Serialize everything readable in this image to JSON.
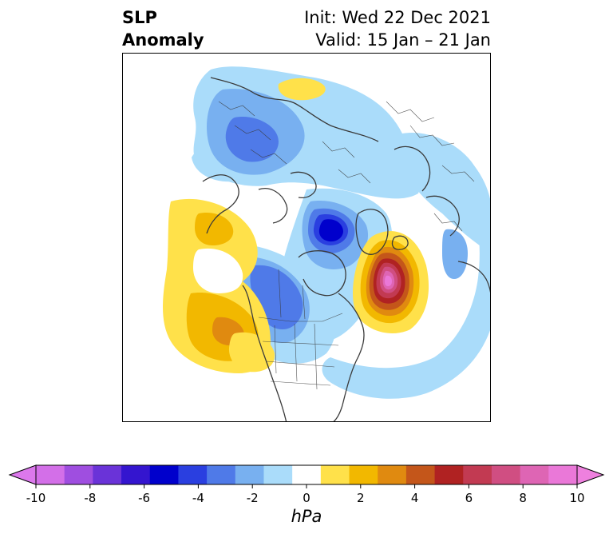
{
  "header": {
    "title_line1": "SLP",
    "title_line2": "Anomaly",
    "init_text": "Init: Wed 22 Dec 2021",
    "valid_text": "Valid: 15 Jan – 21 Jan"
  },
  "colorbar": {
    "unit": "hPa",
    "tick_labels": [
      "-10",
      "-8",
      "-6",
      "-4",
      "-2",
      "0",
      "2",
      "4",
      "6",
      "8",
      "10"
    ],
    "levels": [
      -10,
      -9,
      -8,
      -7,
      -6,
      -5,
      -4,
      -3,
      -2,
      -1,
      1,
      2,
      3,
      4,
      5,
      6,
      7,
      8,
      9,
      10
    ],
    "colors": [
      "#d36fe8",
      "#9f4ee0",
      "#6a33d8",
      "#3415cf",
      "#0000cc",
      "#2a3fe0",
      "#4f7ae8",
      "#78b0f0",
      "#aadcfa",
      "#ffffff",
      "#ffe14a",
      "#f2b800",
      "#e08a10",
      "#c4561a",
      "#b02222",
      "#c23a52",
      "#d04e82",
      "#de65b4",
      "#ea78d8"
    ],
    "min_extend_color": "#dc78ec",
    "max_extend_color": "#ee80de"
  },
  "map": {
    "description_region": "Northern Hemisphere polar stereographic",
    "palette": {
      "light_blue": "#aadcfa",
      "sky_blue": "#78b0f0",
      "mid_blue": "#4f7ae8",
      "royal_blue": "#2a3fe0",
      "deep_blue": "#0000cc",
      "yellow": "#ffe14a",
      "gold": "#f2b800",
      "orange": "#e08a10",
      "rust": "#c4561a",
      "crimson": "#b02222",
      "rose": "#c23a52",
      "pink": "#d04e82",
      "magenta": "#de65b4",
      "violet_pink": "#ea78d8",
      "coast": "#3a3a3a"
    }
  }
}
